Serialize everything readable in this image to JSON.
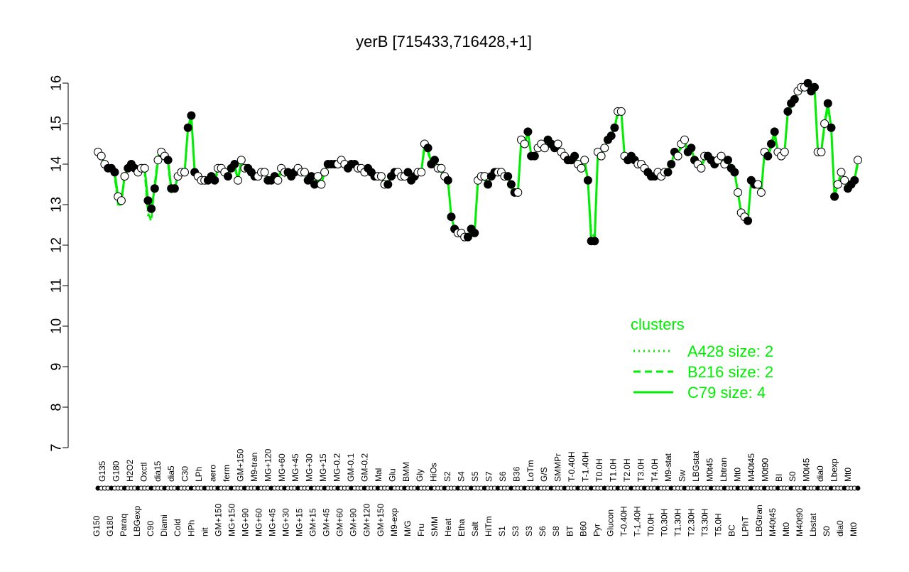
{
  "chart_data": {
    "type": "line",
    "title": "yerB [715433,716428,+1]",
    "xlabel": "",
    "ylabel": "",
    "ylim": [
      7,
      16
    ],
    "y_ticks": [
      7,
      8,
      9,
      10,
      11,
      12,
      13,
      14,
      15,
      16
    ],
    "x_tick_labels_upper": [
      "G135",
      "G180",
      "H2O2",
      "Oxctl",
      "dia15",
      "dia5",
      "C30",
      "LPh",
      "aero",
      "ferm",
      "GM+150",
      "M9-tran",
      "MG+120",
      "MG+60",
      "MG+45",
      "MG+30",
      "MG+15",
      "MG-0.2",
      "GM-0.1",
      "GM-0.2",
      "Mal",
      "Glu",
      "BMM",
      "Gly",
      "HiOs",
      "S2",
      "S4",
      "S5",
      "S7",
      "S6",
      "B36",
      "LoTm",
      "G/S",
      "SMMPr",
      "T-0.40H",
      "T-1.40H",
      "T0.0H",
      "T1.0H",
      "T2.0H",
      "T3.0H",
      "T4.0H",
      "M9-stat",
      "Sw",
      "LBGstat",
      "M0t45",
      "Lbtran",
      "Mt0",
      "M40t45",
      "M0t90",
      "BI",
      "S0",
      "M0t45",
      "dia0",
      "Lbexp",
      "Mt0"
    ],
    "x_tick_labels_lower": [
      "G150",
      "G180",
      "Paraq",
      "LBGexp",
      "C90",
      "Diami",
      "Cold",
      "HPh",
      "nit",
      "GM+150",
      "MG+150",
      "MG+90",
      "MG+60",
      "MG+45",
      "MG+30",
      "MG+15",
      "GM+15",
      "GM+45",
      "GM+60",
      "GM+90",
      "GM+120",
      "GM+150",
      "M9-exp",
      "M/G",
      "Fru",
      "SMM",
      "Heat",
      "Etha",
      "Salt",
      "HiTm",
      "S1",
      "S3",
      "S3",
      "S6",
      "S8",
      "BT",
      "B60",
      "Pyr",
      "Glucon",
      "T-0.40H",
      "T-1.40H",
      "T0.0H",
      "T0.30H",
      "T1.30H",
      "T2.30H",
      "T3.30H",
      "T5.0H",
      "BC",
      "LPhT",
      "LBGtran",
      "M40t45",
      "Mt0",
      "M40t90",
      "Lbstat",
      "S0",
      "dia0",
      "Mt0"
    ],
    "series": [
      {
        "name": "C79 size: 4",
        "style": "solid",
        "values": [
          14.3,
          14.2,
          14.0,
          13.9,
          13.9,
          13.8,
          13.2,
          13.1,
          13.7,
          13.9,
          14.0,
          13.9,
          13.8,
          13.9,
          13.9,
          13.1,
          12.9,
          13.4,
          14.1,
          14.3,
          14.2,
          14.1,
          13.4,
          13.4,
          13.7,
          13.8,
          13.8,
          14.9,
          15.2,
          13.8,
          13.7,
          13.6,
          13.6,
          13.6,
          13.7,
          13.6,
          13.9,
          13.9,
          13.8,
          13.7,
          13.9,
          14.0,
          13.6,
          14.1,
          13.9,
          13.9,
          13.8,
          13.7,
          13.7,
          13.8,
          13.8,
          13.6,
          13.6,
          13.7,
          13.6,
          13.9,
          13.8,
          13.8,
          13.7,
          13.8,
          13.9,
          13.8,
          13.8,
          13.6,
          13.7,
          13.5,
          13.7,
          13.5,
          13.8,
          14.0,
          14.0,
          14.0,
          14.0,
          14.1,
          14.0,
          13.9,
          14.0,
          14.0,
          13.9,
          13.9,
          13.8,
          13.9,
          13.8,
          13.7,
          13.7,
          13.7,
          13.5,
          13.5,
          13.7,
          13.8,
          13.8,
          13.7,
          13.7,
          13.8,
          13.6,
          13.7,
          13.8,
          13.8,
          14.5,
          14.4,
          14.0,
          14.1,
          13.9,
          13.9,
          13.7,
          13.6,
          12.7,
          12.4,
          12.3,
          12.3,
          12.2,
          12.2,
          12.4,
          12.3,
          13.6,
          13.7,
          13.7,
          13.5,
          13.7,
          13.8,
          13.8,
          13.8,
          13.7,
          13.7,
          13.5,
          13.3,
          13.3,
          14.6,
          14.5,
          14.8,
          14.2,
          14.2,
          14.4,
          14.5,
          14.4,
          14.6,
          14.5,
          14.4,
          14.5,
          14.3,
          14.2,
          14.1,
          14.1,
          14.2,
          14.0,
          13.9,
          14.1,
          13.6,
          12.1,
          12.1,
          14.3,
          14.2,
          14.4,
          14.6,
          14.7,
          14.9,
          15.3,
          15.3,
          14.2,
          14.1,
          14.2,
          14.1,
          14.0,
          14.0,
          13.9,
          13.8,
          13.7,
          13.7,
          13.8,
          13.7,
          13.8,
          13.8,
          14.0,
          14.3,
          14.2,
          14.5,
          14.6,
          14.3,
          14.4,
          14.1,
          14.0,
          13.9,
          14.2,
          14.2,
          14.1,
          14.0,
          14.1,
          14.2,
          14.0,
          14.1,
          13.9,
          13.8,
          13.3,
          12.8,
          12.7,
          12.6,
          13.6,
          13.5,
          13.5,
          13.3,
          14.3,
          14.2,
          14.5,
          14.8,
          14.3,
          14.2,
          14.3,
          15.3,
          15.5,
          15.6,
          15.8,
          15.9,
          15.9,
          16.0,
          15.8,
          15.9,
          14.3,
          14.3,
          15.0,
          15.5,
          14.9,
          13.2,
          13.5,
          13.8,
          13.6,
          13.4,
          13.5,
          13.6,
          14.1
        ]
      },
      {
        "name": "B216 size: 2",
        "style": "dashed",
        "values": [
          14.3,
          14.3,
          14.0,
          13.9,
          13.8,
          13.7,
          13.0,
          13.0,
          13.7,
          14.0,
          13.9,
          13.8,
          13.8,
          13.9,
          13.8,
          12.8,
          12.6,
          13.5,
          14.2,
          14.3,
          14.2,
          14.0,
          13.3,
          13.3,
          13.7,
          13.7,
          13.8,
          14.9,
          15.1,
          13.9,
          13.6,
          13.5,
          13.6,
          13.6,
          13.6,
          13.6,
          13.8,
          13.9,
          13.8,
          13.7,
          13.9,
          13.9,
          13.6,
          14.0,
          13.9,
          13.9,
          13.8,
          13.6,
          13.7,
          13.7,
          13.8,
          13.6,
          13.6,
          13.6,
          13.6,
          13.9,
          13.7,
          13.8,
          13.7,
          13.8,
          13.8,
          13.8,
          13.8,
          13.6,
          13.7,
          13.5,
          13.6,
          13.6,
          13.8,
          13.9,
          14.0,
          14.0,
          14.0,
          14.1,
          14.0,
          13.9,
          14.0,
          14.0,
          13.9,
          13.9,
          13.8,
          13.8,
          13.8,
          13.7,
          13.7,
          13.7,
          13.5,
          13.5,
          13.7,
          13.7,
          13.8,
          13.7,
          13.7,
          13.8,
          13.6,
          13.7,
          13.8,
          13.8,
          14.4,
          14.3,
          14.0,
          14.1,
          13.9,
          13.8,
          13.7,
          13.6,
          12.7,
          12.4,
          12.3,
          12.2,
          12.2,
          12.2,
          12.3,
          12.3,
          13.6,
          13.7,
          13.6,
          13.5,
          13.7,
          13.8,
          13.8,
          13.8,
          13.7,
          13.7,
          13.4,
          13.3,
          13.3,
          14.5,
          14.4,
          14.8,
          14.2,
          14.2,
          14.4,
          14.5,
          14.4,
          14.6,
          14.5,
          14.4,
          14.5,
          14.3,
          14.2,
          14.1,
          14.1,
          14.2,
          14.0,
          13.9,
          14.0,
          13.6,
          12.3,
          12.2,
          14.3,
          14.2,
          14.4,
          14.6,
          14.7,
          14.9,
          15.2,
          15.3,
          14.2,
          14.1,
          14.2,
          14.1,
          14.0,
          14.0,
          13.9,
          13.8,
          13.7,
          13.7,
          13.8,
          13.7,
          13.7,
          13.8,
          14.0,
          14.3,
          14.2,
          14.4,
          14.5,
          14.3,
          14.3,
          14.1,
          14.0,
          13.9,
          14.1,
          14.2,
          14.1,
          14.0,
          14.1,
          14.1,
          14.0,
          14.1,
          13.9,
          13.8,
          13.3,
          12.8,
          12.7,
          12.6,
          13.6,
          13.5,
          13.5,
          13.3,
          14.3,
          14.2,
          14.4,
          14.7,
          14.3,
          14.2,
          14.3,
          15.3,
          15.4,
          15.6,
          15.8,
          15.9,
          15.9,
          15.9,
          15.8,
          15.9,
          14.3,
          14.3,
          14.9,
          15.4,
          14.9,
          13.2,
          13.5,
          13.8,
          13.6,
          13.4,
          13.5,
          13.6,
          14.0
        ]
      },
      {
        "name": "A428 size: 2",
        "style": "dotted",
        "values": [
          14.2,
          14.2,
          13.9,
          13.9,
          13.8,
          13.7,
          13.0,
          13.0,
          13.7,
          13.9,
          13.9,
          13.8,
          13.8,
          13.9,
          13.8,
          12.7,
          12.6,
          13.5,
          14.1,
          14.3,
          14.2,
          14.0,
          13.3,
          13.3,
          13.7,
          13.7,
          13.8,
          14.8,
          15.1,
          13.8,
          13.6,
          13.5,
          13.6,
          13.6,
          13.6,
          13.6,
          13.8,
          13.9,
          13.8,
          13.7,
          13.8,
          13.9,
          13.6,
          14.0,
          13.9,
          13.9,
          13.8,
          13.6,
          13.7,
          13.7,
          13.8,
          13.6,
          13.6,
          13.6,
          13.6,
          13.8,
          13.7,
          13.8,
          13.7,
          13.8,
          13.8,
          13.8,
          13.8,
          13.6,
          13.7,
          13.5,
          13.6,
          13.6,
          13.8,
          13.9,
          14.0,
          14.0,
          14.0,
          14.1,
          14.0,
          13.9,
          14.0,
          14.0,
          13.9,
          13.9,
          13.8,
          13.8,
          13.8,
          13.7,
          13.7,
          13.7,
          13.5,
          13.5,
          13.7,
          13.7,
          13.8,
          13.7,
          13.7,
          13.8,
          13.6,
          13.7,
          13.8,
          13.8,
          14.4,
          14.3,
          14.0,
          14.1,
          13.9,
          13.8,
          13.7,
          13.6,
          12.7,
          12.4,
          12.3,
          12.2,
          12.2,
          12.2,
          12.3,
          12.3,
          13.6,
          13.7,
          13.6,
          13.5,
          13.7,
          13.8,
          13.8,
          13.8,
          13.7,
          13.7,
          13.4,
          13.3,
          13.3,
          14.5,
          14.4,
          14.8,
          14.2,
          14.2,
          14.4,
          14.5,
          14.4,
          14.6,
          14.5,
          14.4,
          14.5,
          14.3,
          14.2,
          14.1,
          14.1,
          14.2,
          14.0,
          13.9,
          14.0,
          13.6,
          12.3,
          12.2,
          14.3,
          14.2,
          14.4,
          14.6,
          14.7,
          14.9,
          15.2,
          15.3,
          14.2,
          14.1,
          14.2,
          14.1,
          14.0,
          14.0,
          13.9,
          13.8,
          13.7,
          13.7,
          13.8,
          13.7,
          13.7,
          13.8,
          14.0,
          14.3,
          14.2,
          14.4,
          14.5,
          14.3,
          14.3,
          14.1,
          14.0,
          13.9,
          14.1,
          14.2,
          14.1,
          14.0,
          14.1,
          14.1,
          14.0,
          14.1,
          13.9,
          13.8,
          13.3,
          12.8,
          12.7,
          12.6,
          13.6,
          13.5,
          13.5,
          13.3,
          14.3,
          14.2,
          14.4,
          14.7,
          14.3,
          14.2,
          14.3,
          15.3,
          15.4,
          15.6,
          15.8,
          15.9,
          15.9,
          15.9,
          15.8,
          15.9,
          14.3,
          14.3,
          14.9,
          15.4,
          14.9,
          13.2,
          13.5,
          13.8,
          13.6,
          13.4,
          13.5,
          13.6,
          14.0
        ]
      }
    ],
    "legend": {
      "title": "clusters",
      "placement": "bottom-right",
      "entries": [
        "A428 size: 2",
        "B216 size: 2",
        "C79 size: 4"
      ]
    },
    "grid": false,
    "colors": {
      "lines": "#00ee00",
      "points_fill_open": "#ffffff",
      "points_fill_closed": "#000000",
      "axis": "#000000"
    }
  }
}
